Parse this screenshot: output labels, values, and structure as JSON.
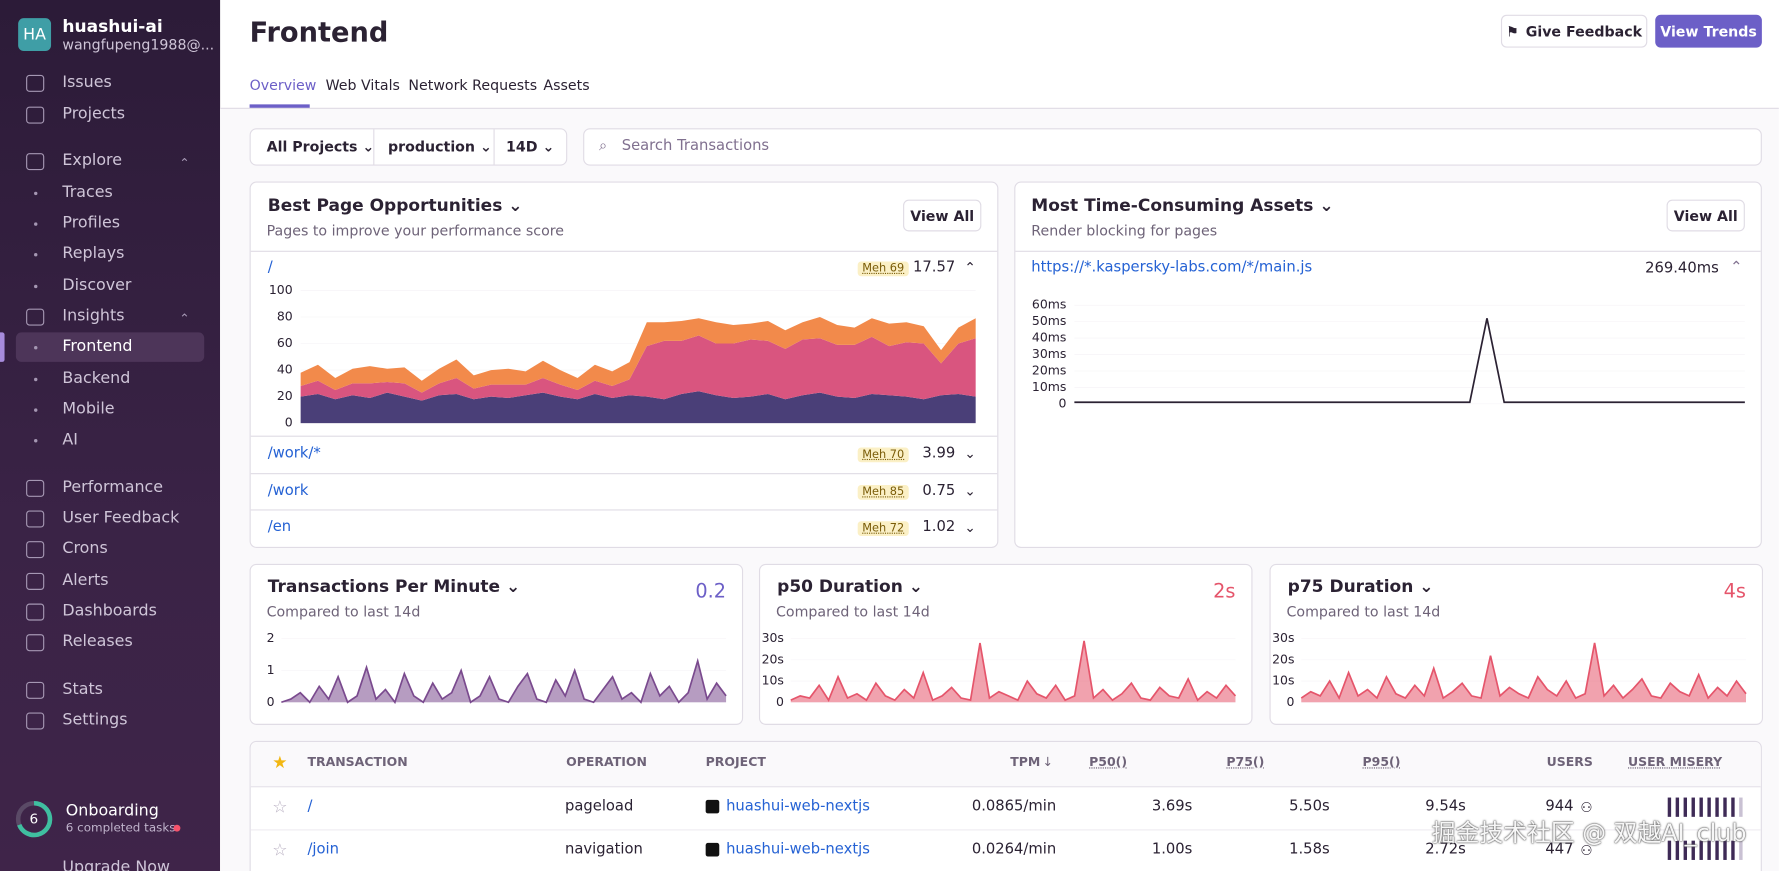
{
  "sidebar": {
    "avatar": "HA",
    "org": "huashui-ai",
    "user": "wangfupeng1988@...",
    "nav": [
      "Issues",
      "Projects",
      "Explore",
      "Traces",
      "Profiles",
      "Replays",
      "Discover",
      "Insights",
      "Frontend",
      "Backend",
      "Mobile",
      "AI",
      "Performance",
      "User Feedback",
      "Crons",
      "Alerts",
      "Dashboards",
      "Releases",
      "Stats",
      "Settings"
    ],
    "onboarding": {
      "count": "6",
      "title": "Onboarding",
      "subtitle": "6 completed tasks"
    },
    "upgrade": "Upgrade Now"
  },
  "header": {
    "title": "Frontend",
    "feedback": "Give Feedback",
    "trends": "View Trends"
  },
  "tabs": [
    "Overview",
    "Web Vitals",
    "Network Requests",
    "Assets"
  ],
  "filters": {
    "project": "All Projects",
    "environment": "production",
    "period": "14D",
    "search": "Search Transactions"
  },
  "pages": {
    "title": "Best Page Opportunities",
    "subtitle": "Pages to improve your performance score",
    "view_all": "View All",
    "rows": [
      {
        "page": "/",
        "badge": "Meh 69",
        "value": "17.57"
      },
      {
        "page": "/work/*",
        "badge": "Meh 70",
        "value": "3.99"
      },
      {
        "page": "/work",
        "badge": "Meh 85",
        "value": "0.75"
      },
      {
        "page": "/en",
        "badge": "Meh 72",
        "value": "1.02"
      }
    ],
    "chart": {
      "type": "area",
      "ylim": [
        0,
        100
      ],
      "yticks": [
        0,
        20,
        40,
        60,
        80,
        100
      ],
      "series": [
        {
          "color": "#4a3f78",
          "values": [
            20,
            22,
            18,
            21,
            19,
            23,
            20,
            17,
            21,
            22,
            18,
            20,
            19,
            21,
            23,
            20,
            18,
            22,
            19,
            21,
            20,
            18,
            22,
            24,
            21,
            19,
            20,
            22,
            18,
            21,
            23,
            20,
            19,
            22,
            21,
            20,
            18,
            21,
            22,
            20
          ]
        },
        {
          "color": "#d9557f",
          "values": [
            8,
            10,
            7,
            9,
            11,
            8,
            10,
            6,
            9,
            12,
            8,
            9,
            10,
            8,
            11,
            9,
            7,
            10,
            9,
            12,
            38,
            44,
            40,
            42,
            39,
            41,
            43,
            40,
            38,
            42,
            41,
            39,
            40,
            43,
            37,
            41,
            42,
            24,
            38,
            44
          ]
        },
        {
          "color": "#f28a4b",
          "values": [
            10,
            12,
            9,
            11,
            13,
            10,
            12,
            9,
            11,
            14,
            10,
            11,
            12,
            10,
            13,
            11,
            9,
            12,
            11,
            13,
            18,
            14,
            15,
            13,
            16,
            14,
            12,
            15,
            14,
            13,
            16,
            15,
            13,
            14,
            17,
            15,
            13,
            10,
            12,
            15
          ]
        }
      ]
    }
  },
  "assets": {
    "title": "Most Time-Consuming Assets",
    "subtitle": "Render blocking for pages",
    "view_all": "View All",
    "rows": [
      {
        "asset": "https://*.kaspersky-labs.com/*/main.js",
        "value": "269.40ms"
      }
    ],
    "chart": {
      "type": "line",
      "color": "#2b2233",
      "ylim": [
        0,
        60
      ],
      "yticks": [
        0,
        {
          "value": 10,
          "label": "10ms"
        },
        {
          "value": 20,
          "label": "20ms"
        },
        {
          "value": 30,
          "label": "30ms"
        },
        {
          "value": 40,
          "label": "40ms"
        },
        {
          "value": 50,
          "label": "50ms"
        },
        {
          "value": 60,
          "label": "60ms"
        }
      ],
      "values": [
        1,
        1,
        1,
        1,
        1,
        1,
        1,
        1,
        1,
        1,
        1,
        1,
        1,
        1,
        1,
        1,
        1,
        1,
        1,
        1,
        1,
        1,
        1,
        1,
        52,
        1,
        1,
        1,
        1,
        1,
        1,
        1,
        1,
        1,
        1,
        1,
        1,
        1,
        1,
        1
      ]
    }
  },
  "widgets": [
    {
      "title": "Transactions Per Minute",
      "subtitle": "Compared to last 14d",
      "value": "0.2",
      "value_color": "#6c5fc7",
      "chart": {
        "type": "area",
        "color": "#7a4a8e",
        "ylim": [
          0,
          2
        ],
        "yticks": [
          0,
          1,
          2
        ],
        "values": [
          0,
          0.1,
          0.3,
          0,
          0.5,
          0.1,
          0.8,
          0,
          0.2,
          1.1,
          0.1,
          0.4,
          0,
          0.9,
          0.2,
          0,
          0.6,
          0.1,
          0.3,
          1,
          0,
          0.2,
          0.8,
          0.1,
          0,
          0.5,
          0.9,
          0.1,
          0,
          0.7,
          0.2,
          1,
          0.1,
          0,
          0.4,
          0.8,
          0.1,
          0.3,
          0,
          0.9,
          0.2,
          0.5,
          0,
          0.3,
          1.3,
          0.1,
          0.6,
          0.2
        ]
      }
    },
    {
      "title": "p50 Duration",
      "subtitle": "Compared to last 14d",
      "value": "2s",
      "value_color": "#e5556b",
      "chart": {
        "type": "area",
        "color": "#e5556b",
        "ylim": [
          0,
          30
        ],
        "yticks": [
          0,
          {
            "value": 10,
            "label": "10s"
          },
          {
            "value": 20,
            "label": "20s"
          },
          {
            "value": 30,
            "label": "30s"
          }
        ],
        "values": [
          1,
          3,
          2,
          8,
          1,
          12,
          2,
          4,
          1,
          9,
          3,
          1,
          6,
          2,
          14,
          1,
          3,
          7,
          2,
          1,
          28,
          2,
          5,
          3,
          1,
          10,
          4,
          2,
          8,
          1,
          3,
          29,
          2,
          6,
          1,
          4,
          9,
          2,
          1,
          7,
          3,
          2,
          11,
          1,
          5,
          2,
          8,
          3
        ]
      }
    },
    {
      "title": "p75 Duration",
      "subtitle": "Compared to last 14d",
      "value": "4s",
      "value_color": "#e5556b",
      "chart": {
        "type": "area",
        "color": "#e5556b",
        "ylim": [
          0,
          30
        ],
        "yticks": [
          0,
          {
            "value": 10,
            "label": "10s"
          },
          {
            "value": 20,
            "label": "20s"
          },
          {
            "value": 30,
            "label": "30s"
          }
        ],
        "values": [
          2,
          5,
          3,
          10,
          2,
          14,
          3,
          6,
          2,
          12,
          4,
          2,
          8,
          3,
          16,
          2,
          5,
          9,
          3,
          2,
          22,
          3,
          7,
          4,
          2,
          12,
          6,
          3,
          10,
          2,
          4,
          28,
          3,
          8,
          2,
          6,
          11,
          3,
          2,
          9,
          5,
          3,
          13,
          2,
          7,
          3,
          10,
          4
        ]
      }
    }
  ],
  "table": {
    "columns": [
      "TRANSACTION",
      "OPERATION",
      "PROJECT",
      "TPM",
      "P50()",
      "P75()",
      "P95()",
      "USERS",
      "USER MISERY"
    ],
    "rows": [
      [
        "/",
        "pageload",
        "huashui-web-nextjs",
        "0.0865/min",
        "3.69s",
        "5.50s",
        "9.54s",
        "944"
      ],
      [
        "/join",
        "navigation",
        "huashui-web-nextjs",
        "0.0264/min",
        "1.00s",
        "1.58s",
        "2.72s",
        "447"
      ]
    ]
  },
  "watermark": "掘金技术社区 @ 双越AI_club"
}
